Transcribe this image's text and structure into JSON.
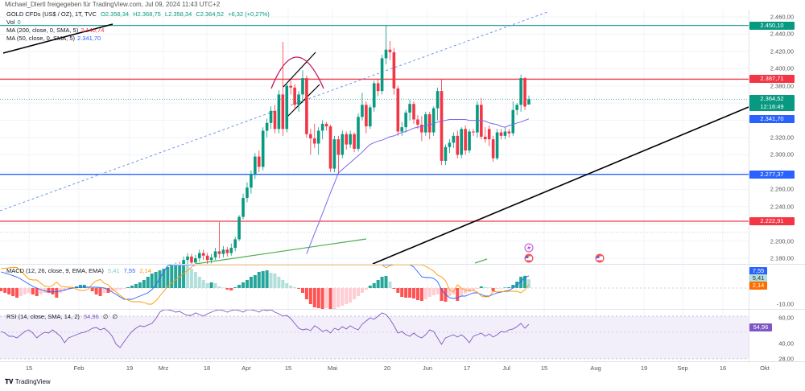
{
  "header": {
    "shared_by": "Michael_Dlertl freigegeben für TradingView.com, Jul 09, 2024 11:43 UTC+2"
  },
  "legend": {
    "symbol": "GOLD CFDs (US$ / OZ), 1T, TVC",
    "open": "O2.358,34",
    "high": "H2.368,75",
    "low": "L2.358,34",
    "close": "C2.364,52",
    "change": "+6,32 (+0,27%)",
    "vol_label": "Vol",
    "vol_value": "0",
    "ma200_label": "MA (200, close, 0, SMA, 5)",
    "ma200_value": "2.140,74",
    "ma50_label": "MA (50, close, 0, SMA, 5)",
    "ma50_value": "2.341,70",
    "macd_label": "MACD (12, 26, close, 9, EMA, EMA)",
    "macd_hist": "5,41",
    "macd_line": "7,55",
    "macd_signal": "2,14",
    "rsi_label": "RSI (14, close, SMA, 14, 2)",
    "rsi_value": "54,96",
    "rsi_extra1": "∅",
    "rsi_extra2": "∅"
  },
  "price_axis": {
    "ticks": [
      2460,
      2440,
      2420,
      2400,
      2380,
      2320,
      2300,
      2260,
      2240,
      2200,
      2180
    ],
    "tick_labels": [
      "2.460,00",
      "2.440,00",
      "2.420,00",
      "2.400,00",
      "2.380,00",
      "2.320,00",
      "2.300,00",
      "2.260,00",
      "2.240,00",
      "2.200,00",
      "2.180,00"
    ],
    "macd_tick": "-10,00",
    "rsi_ticks": [
      "60,00",
      "40,00",
      "28,00"
    ]
  },
  "badges": {
    "resistance_top": {
      "value": 2450.1,
      "label": "2.450,10",
      "color": "#089981"
    },
    "resistance": {
      "value": 2387.71,
      "label": "2.387,71",
      "color": "#f23645"
    },
    "last_price": {
      "value": 2364.52,
      "label": "2.364,52",
      "countdown": "12:16:49",
      "color": "#089981"
    },
    "ma50": {
      "value": 2341.7,
      "label": "2.341,70",
      "color": "#2962ff"
    },
    "support": {
      "value": 2277.37,
      "label": "2.277,37",
      "color": "#2962ff"
    },
    "support_low": {
      "value": 2222.91,
      "label": "2.222,91",
      "color": "#f23645"
    },
    "macd_line": {
      "label": "7,55",
      "color": "#2962ff"
    },
    "macd_hist": {
      "label": "5,41",
      "color": "#b2dfdb"
    },
    "macd_signal": {
      "label": "2,14",
      "color": "#ff6d00"
    },
    "rsi": {
      "label": "54,96",
      "color": "#7e57c2"
    }
  },
  "time_axis": [
    "15",
    "Feb",
    "19",
    "Mrz",
    "18",
    "Apr",
    "15",
    "Mai",
    "20",
    "Jun",
    "17",
    "Jul",
    "15",
    "Aug",
    "19",
    "Sep",
    "16",
    "Okt"
  ],
  "footer": {
    "brand": "TradingView"
  },
  "colors": {
    "up": "#089981",
    "down": "#f23645",
    "ma50": "#7b68ee",
    "macd": "#2962ff",
    "signal": "#ff9800",
    "rsi": "#7e57c2"
  },
  "chart_data": {
    "type": "candlestick",
    "title": "GOLD CFDs (US$ / OZ), 1T, TVC",
    "ylim": [
      2172,
      2470
    ],
    "horizontal_levels": [
      2450.1,
      2387.71,
      2277.37,
      2222.91
    ],
    "candles": [
      [
        2158,
        2163,
        2150,
        2160
      ],
      [
        2160,
        2168,
        2155,
        2165
      ],
      [
        2165,
        2175,
        2160,
        2172
      ],
      [
        2172,
        2176,
        2163,
        2168
      ],
      [
        2168,
        2182,
        2165,
        2178
      ],
      [
        2178,
        2186,
        2172,
        2182
      ],
      [
        2182,
        2185,
        2170,
        2175
      ],
      [
        2175,
        2184,
        2171,
        2180
      ],
      [
        2180,
        2190,
        2176,
        2186
      ],
      [
        2186,
        2190,
        2178,
        2183
      ],
      [
        2183,
        2186,
        2172,
        2178
      ],
      [
        2178,
        2185,
        2174,
        2181
      ],
      [
        2181,
        2192,
        2178,
        2188
      ],
      [
        2188,
        2222,
        2180,
        2185
      ],
      [
        2185,
        2194,
        2181,
        2190
      ],
      [
        2190,
        2193,
        2182,
        2186
      ],
      [
        2186,
        2197,
        2183,
        2192
      ],
      [
        2192,
        2205,
        2188,
        2202
      ],
      [
        2202,
        2230,
        2200,
        2228
      ],
      [
        2228,
        2255,
        2225,
        2250
      ],
      [
        2250,
        2268,
        2245,
        2262
      ],
      [
        2262,
        2282,
        2255,
        2278
      ],
      [
        2278,
        2302,
        2272,
        2298
      ],
      [
        2298,
        2305,
        2280,
        2286
      ],
      [
        2286,
        2332,
        2282,
        2328
      ],
      [
        2328,
        2342,
        2320,
        2337
      ],
      [
        2337,
        2356,
        2330,
        2351
      ],
      [
        2351,
        2358,
        2325,
        2330
      ],
      [
        2330,
        2375,
        2325,
        2370
      ],
      [
        2370,
        2431,
        2322,
        2330
      ],
      [
        2330,
        2384,
        2326,
        2380
      ],
      [
        2380,
        2386,
        2370,
        2378
      ],
      [
        2378,
        2382,
        2352,
        2358
      ],
      [
        2358,
        2374,
        2350,
        2370
      ],
      [
        2370,
        2398,
        2360,
        2389
      ],
      [
        2389,
        2392,
        2320,
        2324
      ],
      [
        2324,
        2330,
        2300,
        2319
      ],
      [
        2319,
        2336,
        2308,
        2313
      ],
      [
        2313,
        2332,
        2300,
        2328
      ],
      [
        2328,
        2340,
        2318,
        2336
      ],
      [
        2336,
        2338,
        2328,
        2333
      ],
      [
        2333,
        2335,
        2280,
        2284
      ],
      [
        2284,
        2322,
        2280,
        2318
      ],
      [
        2318,
        2322,
        2278,
        2300
      ],
      [
        2300,
        2328,
        2296,
        2324
      ],
      [
        2324,
        2327,
        2306,
        2312
      ],
      [
        2312,
        2328,
        2308,
        2324
      ],
      [
        2324,
        2326,
        2303,
        2307
      ],
      [
        2307,
        2348,
        2304,
        2344
      ],
      [
        2344,
        2372,
        2340,
        2358
      ],
      [
        2358,
        2362,
        2325,
        2333
      ],
      [
        2333,
        2358,
        2330,
        2355
      ],
      [
        2355,
        2386,
        2350,
        2383
      ],
      [
        2383,
        2388,
        2368,
        2374
      ],
      [
        2374,
        2416,
        2370,
        2412
      ],
      [
        2412,
        2450,
        2405,
        2422
      ],
      [
        2422,
        2432,
        2410,
        2419
      ],
      [
        2419,
        2424,
        2370,
        2377
      ],
      [
        2377,
        2380,
        2322,
        2327
      ],
      [
        2327,
        2338,
        2322,
        2332
      ],
      [
        2332,
        2352,
        2326,
        2349
      ],
      [
        2349,
        2364,
        2340,
        2359
      ],
      [
        2359,
        2362,
        2336,
        2341
      ],
      [
        2341,
        2346,
        2330,
        2335
      ],
      [
        2335,
        2345,
        2316,
        2326
      ],
      [
        2326,
        2350,
        2322,
        2347
      ],
      [
        2347,
        2350,
        2318,
        2326
      ],
      [
        2326,
        2356,
        2322,
        2354
      ],
      [
        2354,
        2378,
        2340,
        2374
      ],
      [
        2374,
        2388,
        2288,
        2293
      ],
      [
        2293,
        2312,
        2288,
        2309
      ],
      [
        2309,
        2318,
        2302,
        2314
      ],
      [
        2314,
        2326,
        2308,
        2322
      ],
      [
        2322,
        2328,
        2296,
        2300
      ],
      [
        2300,
        2332,
        2296,
        2330
      ],
      [
        2330,
        2334,
        2300,
        2305
      ],
      [
        2305,
        2330,
        2302,
        2327
      ],
      [
        2327,
        2330,
        2322,
        2326
      ],
      [
        2326,
        2362,
        2320,
        2358
      ],
      [
        2358,
        2366,
        2318,
        2321
      ],
      [
        2321,
        2332,
        2314,
        2318
      ],
      [
        2330,
        2334,
        2310,
        2318
      ],
      [
        2318,
        2322,
        2292,
        2296
      ],
      [
        2296,
        2330,
        2294,
        2326
      ],
      [
        2326,
        2330,
        2318,
        2322
      ],
      [
        2322,
        2332,
        2318,
        2327
      ],
      [
        2327,
        2330,
        2320,
        2325
      ],
      [
        2325,
        2362,
        2322,
        2352
      ],
      [
        2352,
        2360,
        2346,
        2358
      ],
      [
        2358,
        2393,
        2350,
        2389
      ],
      [
        2389,
        2390,
        2352,
        2356
      ],
      [
        2358.34,
        2368.75,
        2358.34,
        2364.52
      ]
    ],
    "ma50": [
      null,
      null,
      null,
      null,
      null,
      null,
      null,
      null,
      null,
      null,
      null,
      null,
      null,
      null,
      null,
      null,
      null,
      null,
      null,
      null,
      null,
      null,
      null,
      null,
      null,
      null,
      null,
      null,
      null,
      null,
      null,
      null,
      null,
      null,
      2173,
      2185,
      2197,
      2209,
      2220,
      2232,
      2244,
      2256,
      2267,
      2279,
      2283,
      2287,
      2291,
      2295,
      2299,
      2303,
      2308,
      2312,
      2314,
      2316,
      2317,
      2319,
      2321,
      2322,
      2324,
      2326,
      2327,
      2329,
      2331,
      2332,
      2333,
      2334,
      2335,
      2336,
      2338,
      2339,
      2340,
      2341,
      2341,
      2341,
      2341,
      2341,
      2340,
      2340,
      2340,
      2340,
      2339,
      2337,
      2336,
      2335,
      2333,
      2332,
      2334,
      2335,
      2337,
      2338,
      2340,
      2341.7
    ],
    "macd_histogram": [
      -2,
      -3,
      -4,
      -5,
      -6,
      -5,
      -4,
      -3,
      -4,
      -5,
      -4,
      -3,
      -3,
      -4,
      -6,
      -3,
      -2,
      -1,
      -0.5,
      1,
      2,
      2,
      1,
      -2,
      -4,
      -5,
      -3,
      -3,
      -2,
      -1.5,
      -1,
      -0.5,
      0.5,
      1.5,
      2.5,
      3.5,
      5,
      7,
      9,
      10,
      11,
      12,
      13,
      14,
      15,
      15,
      15,
      14,
      12,
      10,
      7,
      5,
      3,
      3.5,
      3,
      1,
      0.3,
      -1,
      -1.5,
      0.5,
      2,
      3.5,
      5,
      7,
      8,
      10,
      10.5,
      11,
      9.5,
      9,
      7,
      5,
      3,
      1.5,
      0.5,
      -0.5,
      -3,
      -7,
      -10,
      -12,
      -12.5,
      -13,
      -12.5,
      -13.5,
      -13,
      -12,
      -11,
      -10,
      -9,
      -7,
      -5,
      -3,
      -1,
      1.5,
      3,
      5,
      7,
      7.5,
      4,
      -0.5,
      -3,
      -5.5,
      -6,
      -6,
      -6.5,
      -7.5,
      -8,
      -7,
      -5.5,
      -4.5,
      -4,
      -8,
      -8.5,
      -5,
      -4,
      -8,
      -5,
      -3.5,
      -2.5,
      -1.5,
      -0.5,
      1,
      0.5,
      0.3,
      -2,
      -0.5,
      -0.3,
      0.3,
      0.5,
      2,
      4,
      7,
      7.6,
      5.41
    ],
    "macd_line": [
      10,
      9.3,
      8.5,
      7.7,
      6.8,
      5.5,
      4,
      2.5,
      1,
      0,
      -1,
      -1.8,
      -2.2,
      -2.5,
      -2.3,
      -1.8,
      -1.2,
      -0.5,
      0,
      0.3,
      0.5,
      0.5,
      0.5,
      0.5,
      0.5,
      0.3,
      0,
      -1,
      -2.5,
      -4,
      -5.5,
      -7,
      -7,
      -7,
      -6,
      -5,
      -4,
      -3,
      -1,
      2,
      6,
      10,
      14,
      17,
      20,
      22,
      24,
      25,
      25,
      25,
      24,
      23,
      22,
      21,
      20,
      20,
      21,
      22,
      24,
      26,
      28,
      30,
      32,
      34,
      36,
      37,
      38,
      38,
      37,
      36,
      35,
      33,
      31,
      29,
      27,
      25,
      23,
      21,
      19,
      18,
      17,
      16,
      16,
      16,
      17,
      18,
      19,
      20,
      21,
      22,
      23,
      24,
      25,
      25,
      24,
      23,
      22,
      20,
      18,
      17,
      16,
      15.5,
      15,
      14.5,
      13,
      10,
      7,
      6.5,
      6.5,
      6,
      4,
      -1,
      -4,
      -6,
      -6.5,
      -6,
      -5,
      -5,
      -4,
      -3,
      -3,
      -4,
      -5,
      -5,
      -4,
      -3,
      -2.5,
      -2,
      -1.5,
      0,
      2,
      4,
      6.5,
      7.55
    ],
    "rsi": [
      49.4,
      48.1,
      45.6,
      45.6,
      44.4,
      46.9,
      49.4,
      50.6,
      48.1,
      44.4,
      46.9,
      48.8,
      48.1,
      50.6,
      48.1,
      45.6,
      40.6,
      44.4,
      45.6,
      46.9,
      48.1,
      48.8,
      50,
      51.9,
      52.5,
      50.6,
      51.9,
      49.4,
      45.6,
      39.4,
      36.9,
      41.3,
      45.6,
      49.4,
      51.9,
      53.8,
      53.1,
      54.4,
      55.6,
      59.4,
      64.4,
      66.3,
      66.9,
      65.6,
      64.4,
      65,
      63.1,
      61.9,
      61.9,
      63.8,
      62.5,
      61.3,
      63.1,
      64.4,
      65.6,
      66.3,
      65.6,
      64.4,
      65.6,
      66.9,
      65.6,
      64.4,
      66.3,
      66.9,
      65.6,
      64.4,
      66.9,
      65.6,
      66.3,
      64.4,
      63.1,
      61.3,
      61.9,
      59.4,
      55.6,
      51.9,
      50.6,
      51.3,
      50,
      53.8,
      51.9,
      49.4,
      50.6,
      48.1,
      51.9,
      50.6,
      53.1,
      51.3,
      53.8,
      51.9,
      50.6,
      55,
      57.5,
      60,
      58.8,
      61.3,
      63.8,
      62.5,
      58.8,
      53.8,
      48.1,
      49.4,
      46.9,
      45.6,
      48.1,
      45.6,
      44.4,
      46.9,
      50.6,
      49.4,
      44.4,
      39.4,
      44.4,
      45.6,
      46.9,
      45,
      46.9,
      44.4,
      40.6,
      45.6,
      46.9,
      48.1,
      45.6,
      47.5,
      45,
      46.9,
      49.4,
      48.8,
      50.6,
      51.3,
      53.1,
      55.6,
      51.9,
      54.96
    ]
  }
}
